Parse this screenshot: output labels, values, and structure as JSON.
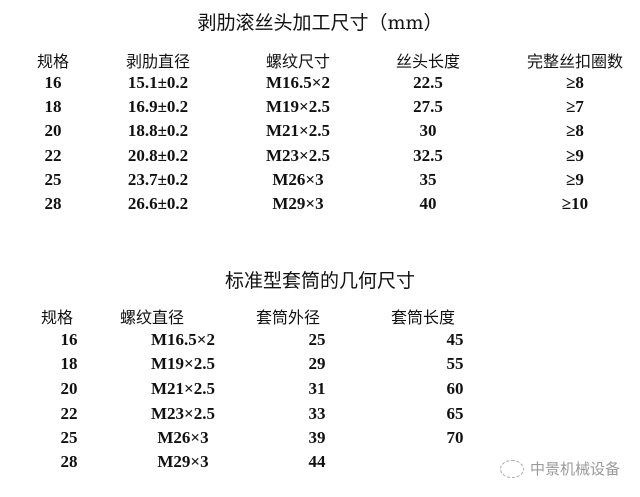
{
  "table1": {
    "title": "剥肋滚丝头加工尺寸（mm）",
    "headers": [
      "规格",
      "剥肋直径",
      "螺纹尺寸",
      "丝头长度",
      "完整丝扣圈数"
    ],
    "rows": [
      [
        "16",
        "15.1±0.2",
        "M16.5×2",
        "22.5",
        "≥8"
      ],
      [
        "18",
        "16.9±0.2",
        "M19×2.5",
        "27.5",
        "≥7"
      ],
      [
        "20",
        "18.8±0.2",
        "M21×2.5",
        "30",
        "≥8"
      ],
      [
        "22",
        "20.8±0.2",
        "M23×2.5",
        "32.5",
        "≥9"
      ],
      [
        "25",
        "23.7±0.2",
        "M26×3",
        "35",
        "≥9"
      ],
      [
        "28",
        "26.6±0.2",
        "M29×3",
        "40",
        "≥10"
      ]
    ]
  },
  "table2": {
    "title": "标准型套筒的几何尺寸",
    "headers": [
      "规格",
      "螺纹直径",
      "套筒外径",
      "套筒长度"
    ],
    "rows": [
      [
        "16",
        "M16.5×2",
        "25",
        "45"
      ],
      [
        "18",
        "M19×2.5",
        "29",
        "55"
      ],
      [
        "20",
        "M21×2.5",
        "31",
        "60"
      ],
      [
        "22",
        "M23×2.5",
        "33",
        "65"
      ],
      [
        "25",
        "M26×3",
        "39",
        "70"
      ],
      [
        "28",
        "M29×3",
        "44",
        ""
      ]
    ]
  },
  "watermark": {
    "text": "中景机械设备",
    "icon": "wechat-icon"
  }
}
